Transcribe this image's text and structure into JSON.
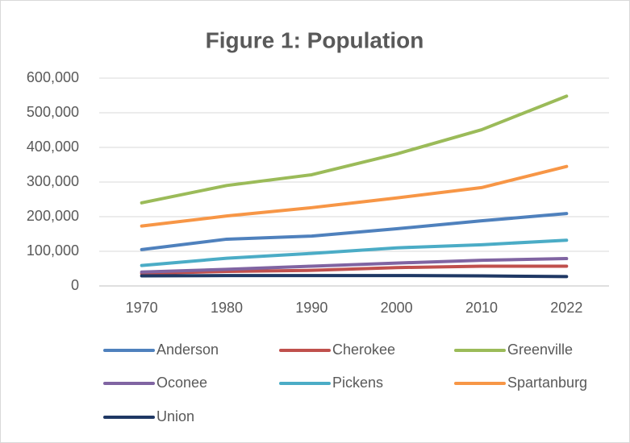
{
  "chart_data": {
    "type": "line",
    "title": "Figure 1: Population",
    "categories": [
      "1970",
      "1980",
      "1990",
      "2000",
      "2010",
      "2022"
    ],
    "series": [
      {
        "name": "Anderson",
        "color": "#4f81bd",
        "values": [
          105000,
          135000,
          144000,
          165000,
          188000,
          209000
        ]
      },
      {
        "name": "Cherokee",
        "color": "#c0504d",
        "values": [
          36000,
          42000,
          45000,
          53000,
          57000,
          57000
        ]
      },
      {
        "name": "Greenville",
        "color": "#9bbb59",
        "values": [
          240000,
          290000,
          321000,
          381000,
          451000,
          548000
        ]
      },
      {
        "name": "Oconee",
        "color": "#8064a2",
        "values": [
          40000,
          48000,
          57000,
          66000,
          74000,
          79000
        ]
      },
      {
        "name": "Pickens",
        "color": "#4bacc6",
        "values": [
          59000,
          80000,
          94000,
          110000,
          119000,
          132000
        ]
      },
      {
        "name": "Spartanburg",
        "color": "#f79646",
        "values": [
          173000,
          202000,
          226000,
          254000,
          284000,
          345000
        ]
      },
      {
        "name": "Union",
        "color": "#1f3864",
        "values": [
          29000,
          30000,
          30000,
          30000,
          29000,
          27000
        ]
      }
    ],
    "ylim": [
      0,
      600000
    ],
    "yticks": [
      0,
      {
        "value": 100000,
        "label": "100,000"
      },
      {
        "value": 200000,
        "label": "200,000"
      },
      {
        "value": 300000,
        "label": "300,000"
      },
      {
        "value": 400000,
        "label": "400,000"
      },
      {
        "value": 500000,
        "label": "500,000"
      },
      {
        "value": 600000,
        "label": "600,000"
      }
    ],
    "legend": "bottom"
  }
}
